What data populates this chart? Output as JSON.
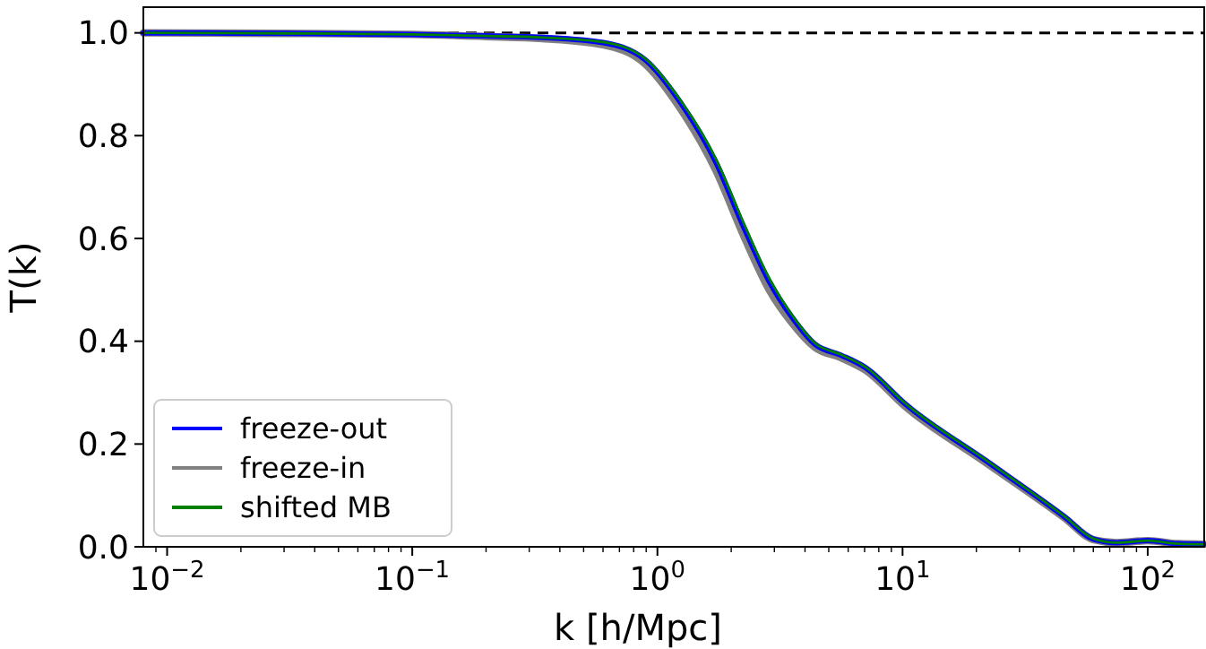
{
  "chart_data": {
    "type": "line",
    "xlabel": "k [h/Mpc]",
    "ylabel": "T(k)",
    "log": "x",
    "xlim": [
      0.008,
      170
    ],
    "ylim": [
      0,
      1.05
    ],
    "xticks": [
      {
        "value": 0.01,
        "label": "10$^{−2}$"
      },
      {
        "value": 0.1,
        "label": "10$^{−1}$"
      },
      {
        "value": 1,
        "label": "10$^{0}$"
      },
      {
        "value": 10,
        "label": "10$^{1}$"
      },
      {
        "value": 100,
        "label": "10$^{2}$"
      },
      {
        "value": 0.009,
        "label": null
      },
      {
        "value": 0.02,
        "label": null
      },
      {
        "value": 0.03,
        "label": null
      },
      {
        "value": 0.04,
        "label": null
      },
      {
        "value": 0.05,
        "label": null
      },
      {
        "value": 0.06,
        "label": null
      },
      {
        "value": 0.07,
        "label": null
      },
      {
        "value": 0.08,
        "label": null
      },
      {
        "value": 0.09,
        "label": null
      },
      {
        "value": 0.2,
        "label": null
      },
      {
        "value": 0.3,
        "label": null
      },
      {
        "value": 0.4,
        "label": null
      },
      {
        "value": 0.5,
        "label": null
      },
      {
        "value": 0.6,
        "label": null
      },
      {
        "value": 0.7,
        "label": null
      },
      {
        "value": 0.8,
        "label": null
      },
      {
        "value": 0.9,
        "label": null
      },
      {
        "value": 2,
        "label": null
      },
      {
        "value": 3,
        "label": null
      },
      {
        "value": 4,
        "label": null
      },
      {
        "value": 5,
        "label": null
      },
      {
        "value": 6,
        "label": null
      },
      {
        "value": 7,
        "label": null
      },
      {
        "value": 8,
        "label": null
      },
      {
        "value": 9,
        "label": null
      },
      {
        "value": 20,
        "label": null
      },
      {
        "value": 30,
        "label": null
      },
      {
        "value": 40,
        "label": null
      },
      {
        "value": 50,
        "label": null
      },
      {
        "value": 60,
        "label": null
      },
      {
        "value": 70,
        "label": null
      },
      {
        "value": 80,
        "label": null
      },
      {
        "value": 90,
        "label": null
      }
    ],
    "yticks": [
      {
        "value": 0,
        "label": "0.0"
      },
      {
        "value": 0.2,
        "label": "0.2"
      },
      {
        "value": 0.4,
        "label": "0.4"
      },
      {
        "value": 0.6,
        "label": "0.6"
      },
      {
        "value": 0.8,
        "label": "0.8"
      },
      {
        "value": 1,
        "label": "1.0"
      }
    ],
    "grid": false,
    "legend": "bottom left",
    "line_style": "solid",
    "marker": "none",
    "ref_lines": [
      {
        "axis": "y",
        "value": 1,
        "color": "#000000",
        "line_style": "dashed"
      }
    ],
    "series": [
      {
        "name": "freeze-out",
        "color": "#0000ff",
        "x": [
          0.008,
          0.03,
          0.1,
          0.2,
          0.34,
          0.6,
          0.89,
          1.24,
          1.73,
          2.26,
          2.86,
          3.55,
          4.4,
          5.6,
          7.1,
          10.2,
          22,
          45.6,
          60,
          75,
          100,
          133,
          170
        ],
        "values": [
          1.0,
          0.999,
          0.997,
          0.994,
          0.991,
          0.981,
          0.948,
          0.865,
          0.749,
          0.62,
          0.516,
          0.446,
          0.394,
          0.373,
          0.348,
          0.279,
          0.167,
          0.059,
          0.015,
          0.008,
          0.012,
          0.006,
          0.005
        ]
      },
      {
        "name": "freeze-in",
        "color": "#808080",
        "x": [
          0.008,
          0.03,
          0.1,
          0.2,
          0.34,
          0.6,
          0.89,
          1.24,
          1.73,
          2.26,
          2.86,
          3.55,
          4.4,
          5.6,
          7.1,
          10.2,
          22,
          45.6,
          60,
          75,
          100,
          133,
          170
        ],
        "values": [
          1.0,
          0.999,
          0.997,
          0.993,
          0.989,
          0.977,
          0.94,
          0.853,
          0.733,
          0.603,
          0.5,
          0.435,
          0.388,
          0.368,
          0.343,
          0.274,
          0.163,
          0.057,
          0.014,
          0.008,
          0.012,
          0.006,
          0.005
        ]
      },
      {
        "name": "shifted MB",
        "color": "#008000",
        "x": [
          0.008,
          0.03,
          0.1,
          0.2,
          0.34,
          0.6,
          0.89,
          1.24,
          1.73,
          2.26,
          2.86,
          3.55,
          4.4,
          5.6,
          7.1,
          10.2,
          22,
          45.6,
          60,
          75,
          100,
          133,
          170
        ],
        "values": [
          1.0,
          0.999,
          0.997,
          0.994,
          0.991,
          0.982,
          0.95,
          0.869,
          0.755,
          0.627,
          0.522,
          0.45,
          0.396,
          0.374,
          0.349,
          0.28,
          0.168,
          0.06,
          0.016,
          0.008,
          0.012,
          0.006,
          0.005
        ]
      }
    ]
  }
}
